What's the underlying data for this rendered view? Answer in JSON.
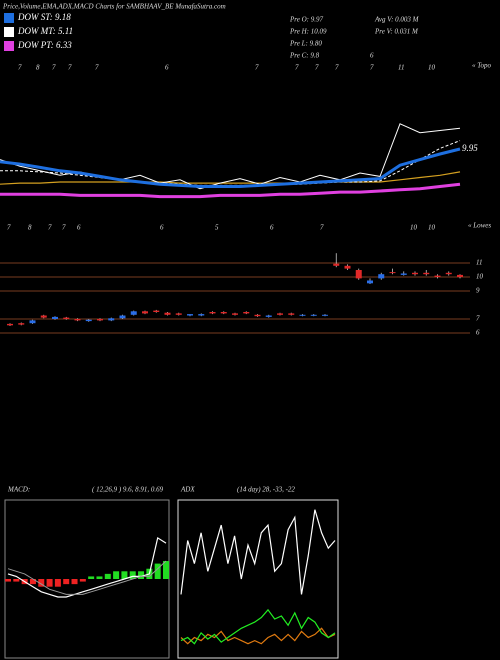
{
  "header": {
    "title": "Price,Volume,EMA,ADX,MACD Charts for SAMBHAAV_BE MunafaSutra.com",
    "legend": [
      {
        "label": "DOW ST: 9.18",
        "color": "#1e6fe0"
      },
      {
        "label": "DOW MT: 5.11",
        "color": "#ffffff"
      },
      {
        "label": "DOW PT: 6.33",
        "color": "#e040e0"
      }
    ],
    "info": [
      "Pre O: 9.97",
      "Avg V: 0.003 M",
      "Pre H: 10.09",
      "Pre V: 0.031 M",
      "Pre L: 9.80",
      "Pre C: 9.8",
      "6"
    ],
    "top_labels": [
      "7",
      "8",
      "7",
      "7",
      "7",
      "6",
      "7",
      "7",
      "7",
      "7",
      "7",
      "11",
      "10"
    ],
    "top_note": "« Topo",
    "bottom_labels": [
      "7",
      "8",
      "7",
      "7",
      "6",
      "6",
      "5",
      "6",
      "7",
      "10",
      "10"
    ],
    "bottom_note": "« Lowes"
  },
  "chart_data": [
    {
      "type": "line",
      "annotation": "9.95",
      "ylim": [
        4.5,
        17
      ],
      "series": [
        {
          "color": "#d4a020",
          "values": [
            6.8,
            6.9,
            6.9,
            7.0,
            7.0,
            7.0,
            7.0,
            7.0,
            7.0,
            6.9,
            6.9,
            6.9,
            6.9,
            6.9,
            6.9,
            6.9,
            7.0,
            7.0,
            7.0,
            7.0,
            7.2,
            7.4,
            7.6,
            7.9
          ]
        },
        {
          "color": "#ffffff",
          "values": [
            8.0,
            8.0,
            7.9,
            7.8,
            7.6,
            7.4,
            7.2,
            7.0,
            6.9,
            6.8,
            6.7,
            6.7,
            6.7,
            6.7,
            6.8,
            6.8,
            6.9,
            7.0,
            7.0,
            7.1,
            8.0,
            9.0,
            10.0,
            10.7
          ]
        },
        {
          "color": "#ffffff",
          "values": [
            9.0,
            8.4,
            8.0,
            7.6,
            7.9,
            7.4,
            7.2,
            7.6,
            6.9,
            7.2,
            6.4,
            6.9,
            7.3,
            6.8,
            7.4,
            7.0,
            7.6,
            7.2,
            7.8,
            7.5,
            12.2,
            11.4,
            11.6,
            11.8
          ]
        },
        {
          "color": "#1e6fe0",
          "values": [
            8.8,
            8.6,
            8.3,
            8.0,
            7.8,
            7.5,
            7.2,
            7.0,
            6.8,
            6.7,
            6.6,
            6.6,
            6.6,
            6.7,
            6.8,
            6.9,
            7.0,
            7.1,
            7.2,
            7.3,
            8.5,
            9.0,
            9.5,
            9.95
          ]
        },
        {
          "color": "#e040e0",
          "values": [
            5.9,
            5.9,
            5.9,
            5.9,
            5.8,
            5.8,
            5.8,
            5.8,
            5.7,
            5.7,
            5.7,
            5.8,
            5.8,
            5.8,
            5.9,
            5.9,
            6.0,
            6.1,
            6.1,
            6.2,
            6.3,
            6.4,
            6.6,
            6.8
          ]
        }
      ]
    },
    {
      "type": "candlestick",
      "ylim": [
        5.5,
        12
      ],
      "yticks": [
        11,
        10,
        9,
        7,
        6
      ],
      "grid": true,
      "up_color": "#2a6ee8",
      "down_color": "#e02828",
      "open": [
        6.65,
        6.7,
        6.7,
        7.25,
        7.0,
        7.1,
        7.0,
        6.85,
        7.0,
        6.9,
        7.05,
        7.3,
        7.55,
        7.6,
        7.45,
        7.4,
        7.25,
        7.25,
        7.5,
        7.5,
        7.4,
        7.5,
        7.3,
        7.15,
        7.4,
        7.4,
        7.25,
        7.25,
        7.25,
        10.95,
        10.8,
        10.5,
        9.55,
        9.9,
        10.35,
        10.15,
        10.3,
        10.3,
        10.1,
        10.3,
        10.15
      ],
      "high": [
        6.7,
        6.75,
        6.95,
        7.3,
        7.2,
        7.15,
        7.05,
        7.0,
        7.05,
        7.1,
        7.3,
        7.6,
        7.6,
        7.65,
        7.5,
        7.45,
        7.35,
        7.4,
        7.55,
        7.55,
        7.45,
        7.55,
        7.35,
        7.3,
        7.45,
        7.45,
        7.35,
        7.35,
        7.35,
        11.7,
        10.9,
        10.6,
        9.9,
        10.3,
        10.6,
        10.4,
        10.4,
        10.5,
        10.2,
        10.4,
        10.2
      ],
      "low": [
        6.5,
        6.55,
        6.65,
        7.05,
        6.95,
        6.95,
        6.85,
        6.8,
        6.85,
        6.85,
        7.0,
        7.25,
        7.35,
        7.45,
        7.25,
        7.25,
        7.2,
        7.2,
        7.35,
        7.35,
        7.25,
        7.35,
        7.15,
        7.1,
        7.25,
        7.25,
        7.2,
        7.2,
        7.2,
        10.7,
        10.5,
        9.8,
        9.5,
        9.8,
        10.2,
        10.1,
        10.1,
        10.1,
        9.9,
        10.1,
        9.9
      ],
      "close": [
        6.55,
        6.6,
        6.9,
        7.1,
        7.15,
        7.0,
        6.9,
        6.95,
        6.9,
        7.05,
        7.25,
        7.55,
        7.4,
        7.5,
        7.3,
        7.3,
        7.35,
        7.35,
        7.4,
        7.4,
        7.3,
        7.4,
        7.2,
        7.25,
        7.3,
        7.3,
        7.3,
        7.3,
        7.3,
        10.8,
        10.6,
        9.9,
        9.75,
        10.2,
        10.3,
        10.25,
        10.2,
        10.2,
        10.0,
        10.2,
        10.0
      ]
    },
    {
      "type": "macd",
      "title": "MACD:",
      "subtitle": "( 12,26,9 ) 9.6, 8.91, 0.69",
      "ylim": [
        -3,
        3
      ],
      "macd": [
        0.2,
        0.1,
        -0.1,
        -0.3,
        -0.5,
        -0.6,
        -0.7,
        -0.7,
        -0.6,
        -0.5,
        -0.4,
        -0.3,
        -0.2,
        -0.1,
        0,
        0.1,
        0.1,
        0.2,
        1.6,
        1.4
      ],
      "signal": [
        0.4,
        0.3,
        0.2,
        0,
        -0.2,
        -0.4,
        -0.5,
        -0.6,
        -0.6,
        -0.6,
        -0.5,
        -0.4,
        -0.3,
        -0.2,
        -0.1,
        0,
        0.1,
        0.1,
        0.4,
        0.7
      ],
      "hist": [
        -0.1,
        -0.1,
        -0.2,
        -0.2,
        -0.3,
        -0.3,
        -0.3,
        -0.2,
        -0.2,
        -0.1,
        0.1,
        0.1,
        0.2,
        0.3,
        0.3,
        0.3,
        0.3,
        0.4,
        0.6,
        0.7
      ],
      "up_color": "#22dd22",
      "down_color": "#ee2222",
      "line_color": "#ffffff"
    },
    {
      "type": "line",
      "title": "ADX",
      "subtitle": "(14 day) 28, -33, -22",
      "ylim": [
        0,
        100
      ],
      "series": [
        {
          "color": "#ffffff",
          "values": [
            40,
            75,
            60,
            80,
            55,
            70,
            85,
            60,
            78,
            50,
            72,
            60,
            80,
            85,
            55,
            60,
            82,
            90,
            40,
            65,
            95,
            80,
            70,
            75
          ]
        },
        {
          "color": "#e07a10",
          "values": [
            12,
            8,
            12,
            10,
            14,
            12,
            16,
            10,
            12,
            10,
            8,
            10,
            8,
            12,
            14,
            10,
            14,
            10,
            16,
            12,
            14,
            18,
            12,
            14
          ]
        },
        {
          "color": "#22ee22",
          "values": [
            10,
            12,
            8,
            15,
            11,
            14,
            9,
            12,
            15,
            18,
            20,
            22,
            25,
            30,
            24,
            26,
            20,
            28,
            18,
            25,
            22,
            15,
            12,
            15
          ]
        }
      ]
    }
  ]
}
